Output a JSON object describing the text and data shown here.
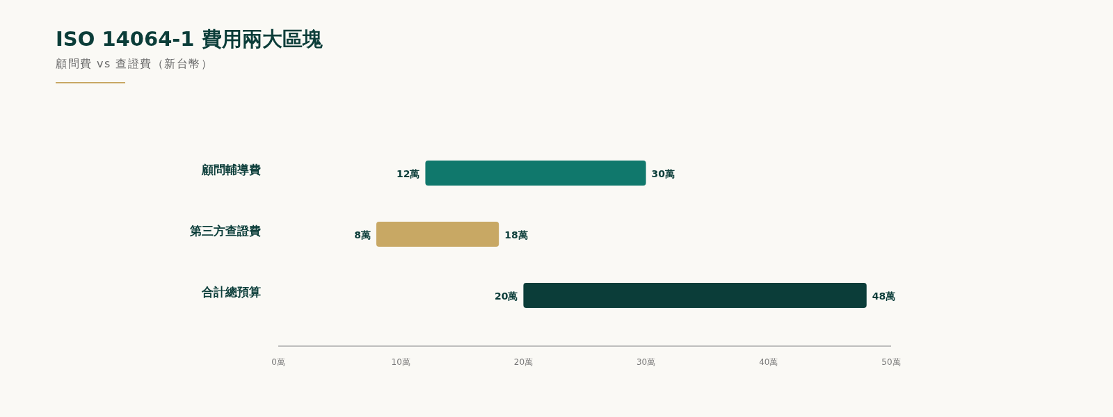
{
  "chart_data": {
    "type": "bar",
    "orientation": "horizontal",
    "title": "ISO 14064-1 費用兩大區塊",
    "subtitle": "顧問費 vs 查證費（新台幣）",
    "categories": [
      "顧問輔導費",
      "第三方查證費",
      "合計總預算"
    ],
    "base": [
      12,
      8,
      20
    ],
    "values": [
      18,
      10,
      28
    ],
    "colors": [
      "#10786c",
      "#c8a864",
      "#0b3d39"
    ],
    "xlim": [
      0,
      50
    ],
    "xticks": [
      {
        "value": 0,
        "label": "0萬"
      },
      {
        "value": 10,
        "label": "10萬"
      },
      {
        "value": 20,
        "label": "20萬"
      },
      {
        "value": 30,
        "label": "30萬"
      },
      {
        "value": 40,
        "label": "40萬"
      },
      {
        "value": 50,
        "label": "50萬"
      }
    ],
    "annotations": [
      {
        "text": "12萬",
        "x": 12,
        "y": "顧問輔導費"
      },
      {
        "text": "30萬",
        "x": 30,
        "y": "顧問輔導費"
      },
      {
        "text": "8萬",
        "x": 8,
        "y": "第三方查證費"
      },
      {
        "text": "18萬",
        "x": 18,
        "y": "第三方查證費"
      },
      {
        "text": "20萬",
        "x": 20,
        "y": "合計總預算"
      },
      {
        "text": "48萬",
        "x": 48,
        "y": "合計總預算"
      }
    ]
  }
}
